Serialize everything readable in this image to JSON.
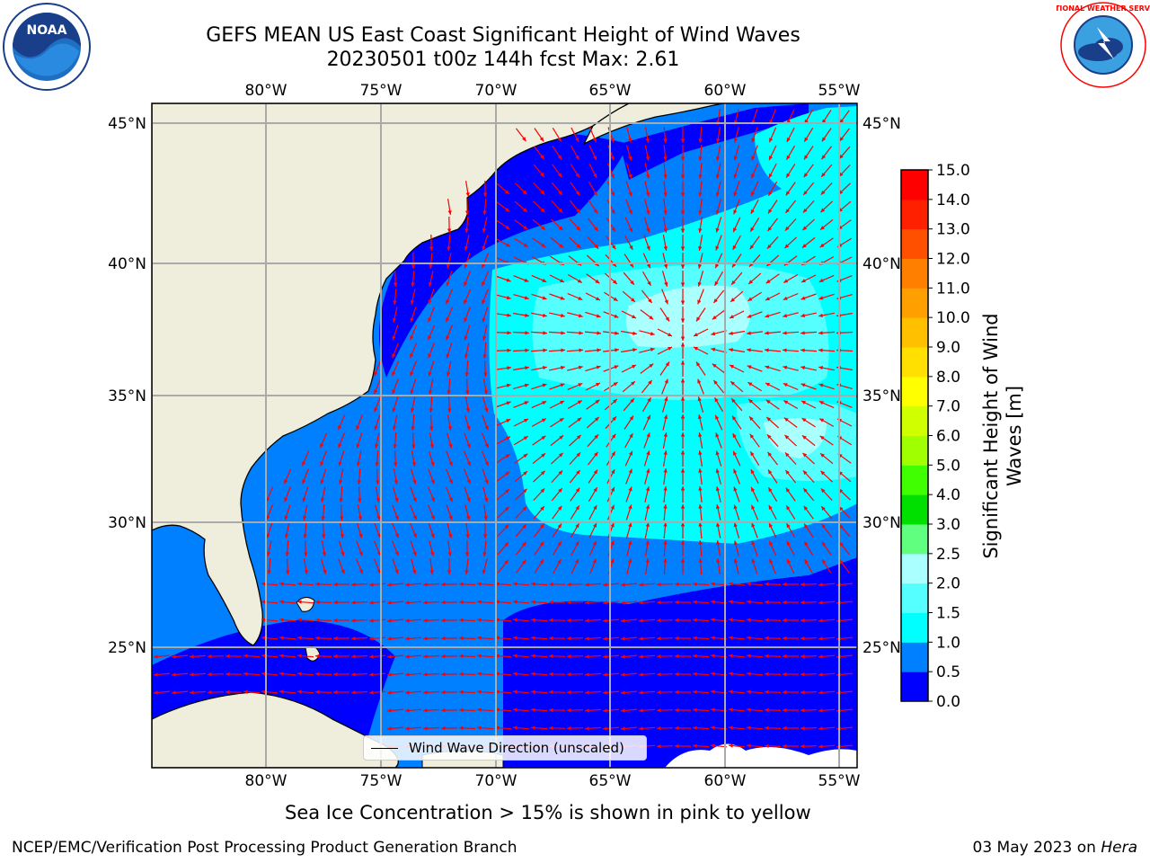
{
  "title_line1": "GEFS MEAN US East Coast Significant Height of Wind Waves",
  "title_line2": "20230501 t00z 144h fcst   Max: 2.61",
  "logos": {
    "left": {
      "icon": "noaa-logo",
      "text": "NOAA"
    },
    "right": {
      "icon": "nws-logo",
      "text": "NATIONAL WEATHER SERVICE"
    }
  },
  "map": {
    "longitude_labels": [
      "80°W",
      "75°W",
      "70°W",
      "65°W",
      "60°W",
      "55°W"
    ],
    "latitude_labels": [
      "45°N",
      "40°N",
      "35°N",
      "30°N",
      "25°N"
    ],
    "legend_label": "Wind Wave Direction (unscaled)",
    "arrow_color": "#ff0000",
    "land_color": "#efeedc",
    "coast_color": "#000000"
  },
  "colorbar": {
    "label": "Significant Height of Wind Waves [m]",
    "label_line1": "Significant Height of Wind",
    "label_line2": "Waves [m]",
    "ticks": [
      "0.0",
      "0.5",
      "1.0",
      "1.5",
      "2.0",
      "2.5",
      "3.0",
      "4.0",
      "5.0",
      "6.0",
      "7.0",
      "8.0",
      "9.0",
      "10.0",
      "11.0",
      "12.0",
      "13.0",
      "14.0",
      "15.0"
    ],
    "colors": [
      "#0000ff",
      "#0080ff",
      "#00ffff",
      "#55ffff",
      "#aaffff",
      "#60ff80",
      "#00e000",
      "#40ff00",
      "#a0ff00",
      "#d0ff00",
      "#ffff00",
      "#ffe000",
      "#ffc000",
      "#ffa000",
      "#ff8000",
      "#ff5000",
      "#ff2000",
      "#ff0000"
    ]
  },
  "subtitle": "Sea Ice Concentration > 15% is shown in pink to yellow",
  "footer_left": "NCEP/EMC/Verification Post Processing Product Generation Branch",
  "footer_right_date": "03 May 2023 on",
  "footer_right_host": "Hera"
}
